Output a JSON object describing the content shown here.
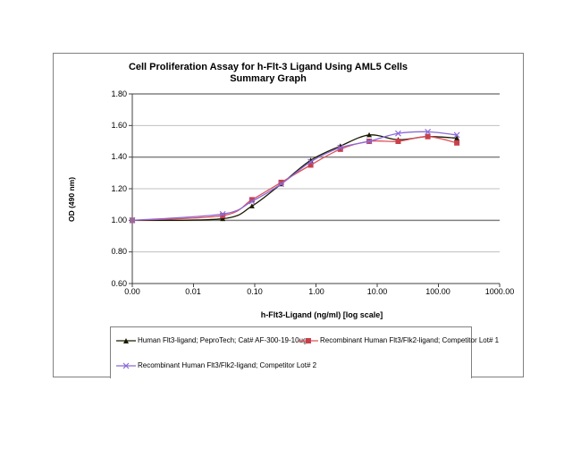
{
  "chart_data": {
    "type": "line",
    "title": "Cell Proliferation Assay for h-Flt-3 Ligand Using AML5 Cells",
    "subtitle": "Summary Graph",
    "xlabel": "h-Flt3-Ligand (ng/ml) [log scale]",
    "ylabel": "OD (490 nm)",
    "xscale": "log",
    "xlim": [
      0.001,
      1000
    ],
    "ylim": [
      0.6,
      1.8
    ],
    "x_tick_labels": [
      "0.00",
      "0.01",
      "0.10",
      "1.00",
      "10.00",
      "100.00",
      "1000.00"
    ],
    "y_tick_labels": [
      "1.80",
      "1.60",
      "1.40",
      "1.20",
      "1.00",
      "0.80",
      "0.60"
    ],
    "grid": "horizontal",
    "legend_position": "bottom",
    "x": [
      0.001,
      0.03,
      0.09,
      0.27,
      0.82,
      2.5,
      7.4,
      22,
      67,
      200
    ],
    "series": [
      {
        "name": "Human Flt3-ligand; PeproTech; Cat# AF-300-19-10ug",
        "color": "#1a1a00",
        "marker": "triangle",
        "values": [
          1.0,
          1.01,
          1.09,
          1.23,
          1.38,
          1.47,
          1.54,
          1.51,
          1.53,
          1.52
        ]
      },
      {
        "name": "Recombinant Human Flt3/Flk2-ligand; Competitor Lot# 1",
        "color": "#e0505a",
        "marker": "square",
        "values": [
          1.0,
          1.03,
          1.13,
          1.24,
          1.35,
          1.45,
          1.5,
          1.5,
          1.53,
          1.49
        ]
      },
      {
        "name": "Recombinant Human Flt3/Flk2-ligand; Competitor Lot# 2",
        "color": "#8a6ad8",
        "marker": "x",
        "values": [
          1.0,
          1.04,
          1.12,
          1.23,
          1.37,
          1.46,
          1.5,
          1.55,
          1.56,
          1.54
        ]
      }
    ]
  },
  "labels": {
    "title_line1": "Cell Proliferation Assay for h-Flt-3 Ligand Using AML5 Cells",
    "title_line2": "Summary Graph",
    "xlabel": "h-Flt3-Ligand (ng/ml) [log scale]",
    "ylabel": "OD (490 nm)",
    "y_ticks": [
      "1.80",
      "1.60",
      "1.40",
      "1.20",
      "1.00",
      "0.80",
      "0.60"
    ],
    "x_ticks": [
      "0.00",
      "0.01",
      "0.10",
      "1.00",
      "10.00",
      "100.00",
      "1000.00"
    ],
    "legend": [
      "Human Flt3-ligand; PeproTech; Cat# AF-300-19-10ug",
      "Recombinant Human Flt3/Flk2-ligand; Competitor Lot# 1",
      "Recombinant Human Flt3/Flk2-ligand; Competitor Lot# 2"
    ]
  }
}
